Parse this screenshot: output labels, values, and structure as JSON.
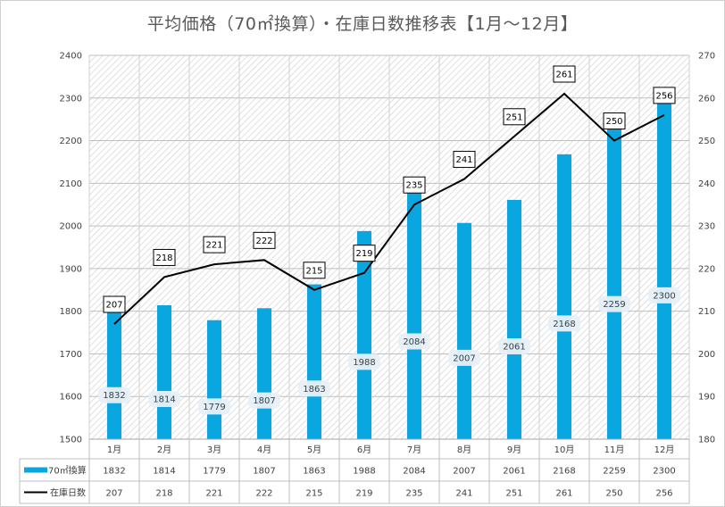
{
  "chart_data": {
    "type": "bar",
    "title": "平均価格（70㎡換算）・在庫日数推移表【1月～12月】",
    "categories": [
      "1月",
      "2月",
      "3月",
      "4月",
      "5月",
      "6月",
      "7月",
      "8月",
      "9月",
      "10月",
      "11月",
      "12月"
    ],
    "series": [
      {
        "name": "70㎡換算",
        "type": "bar",
        "axis": "left",
        "color": "#0aa6e0",
        "values": [
          1832,
          1814,
          1779,
          1807,
          1863,
          1988,
          2084,
          2007,
          2061,
          2168,
          2259,
          2300
        ]
      },
      {
        "name": "在庫日数",
        "type": "line",
        "axis": "right",
        "color": "#000000",
        "values": [
          207,
          218,
          221,
          222,
          215,
          219,
          235,
          241,
          251,
          261,
          250,
          256
        ]
      }
    ],
    "ylim": [
      1500,
      2400
    ],
    "yticks": [
      1500,
      1600,
      1700,
      1800,
      1900,
      2000,
      2100,
      2200,
      2300,
      2400
    ],
    "y2lim": [
      180,
      270
    ],
    "y2ticks": [
      180,
      190,
      200,
      210,
      220,
      230,
      240,
      250,
      260,
      270
    ],
    "grid": true,
    "legend": "data-table-bottom"
  }
}
